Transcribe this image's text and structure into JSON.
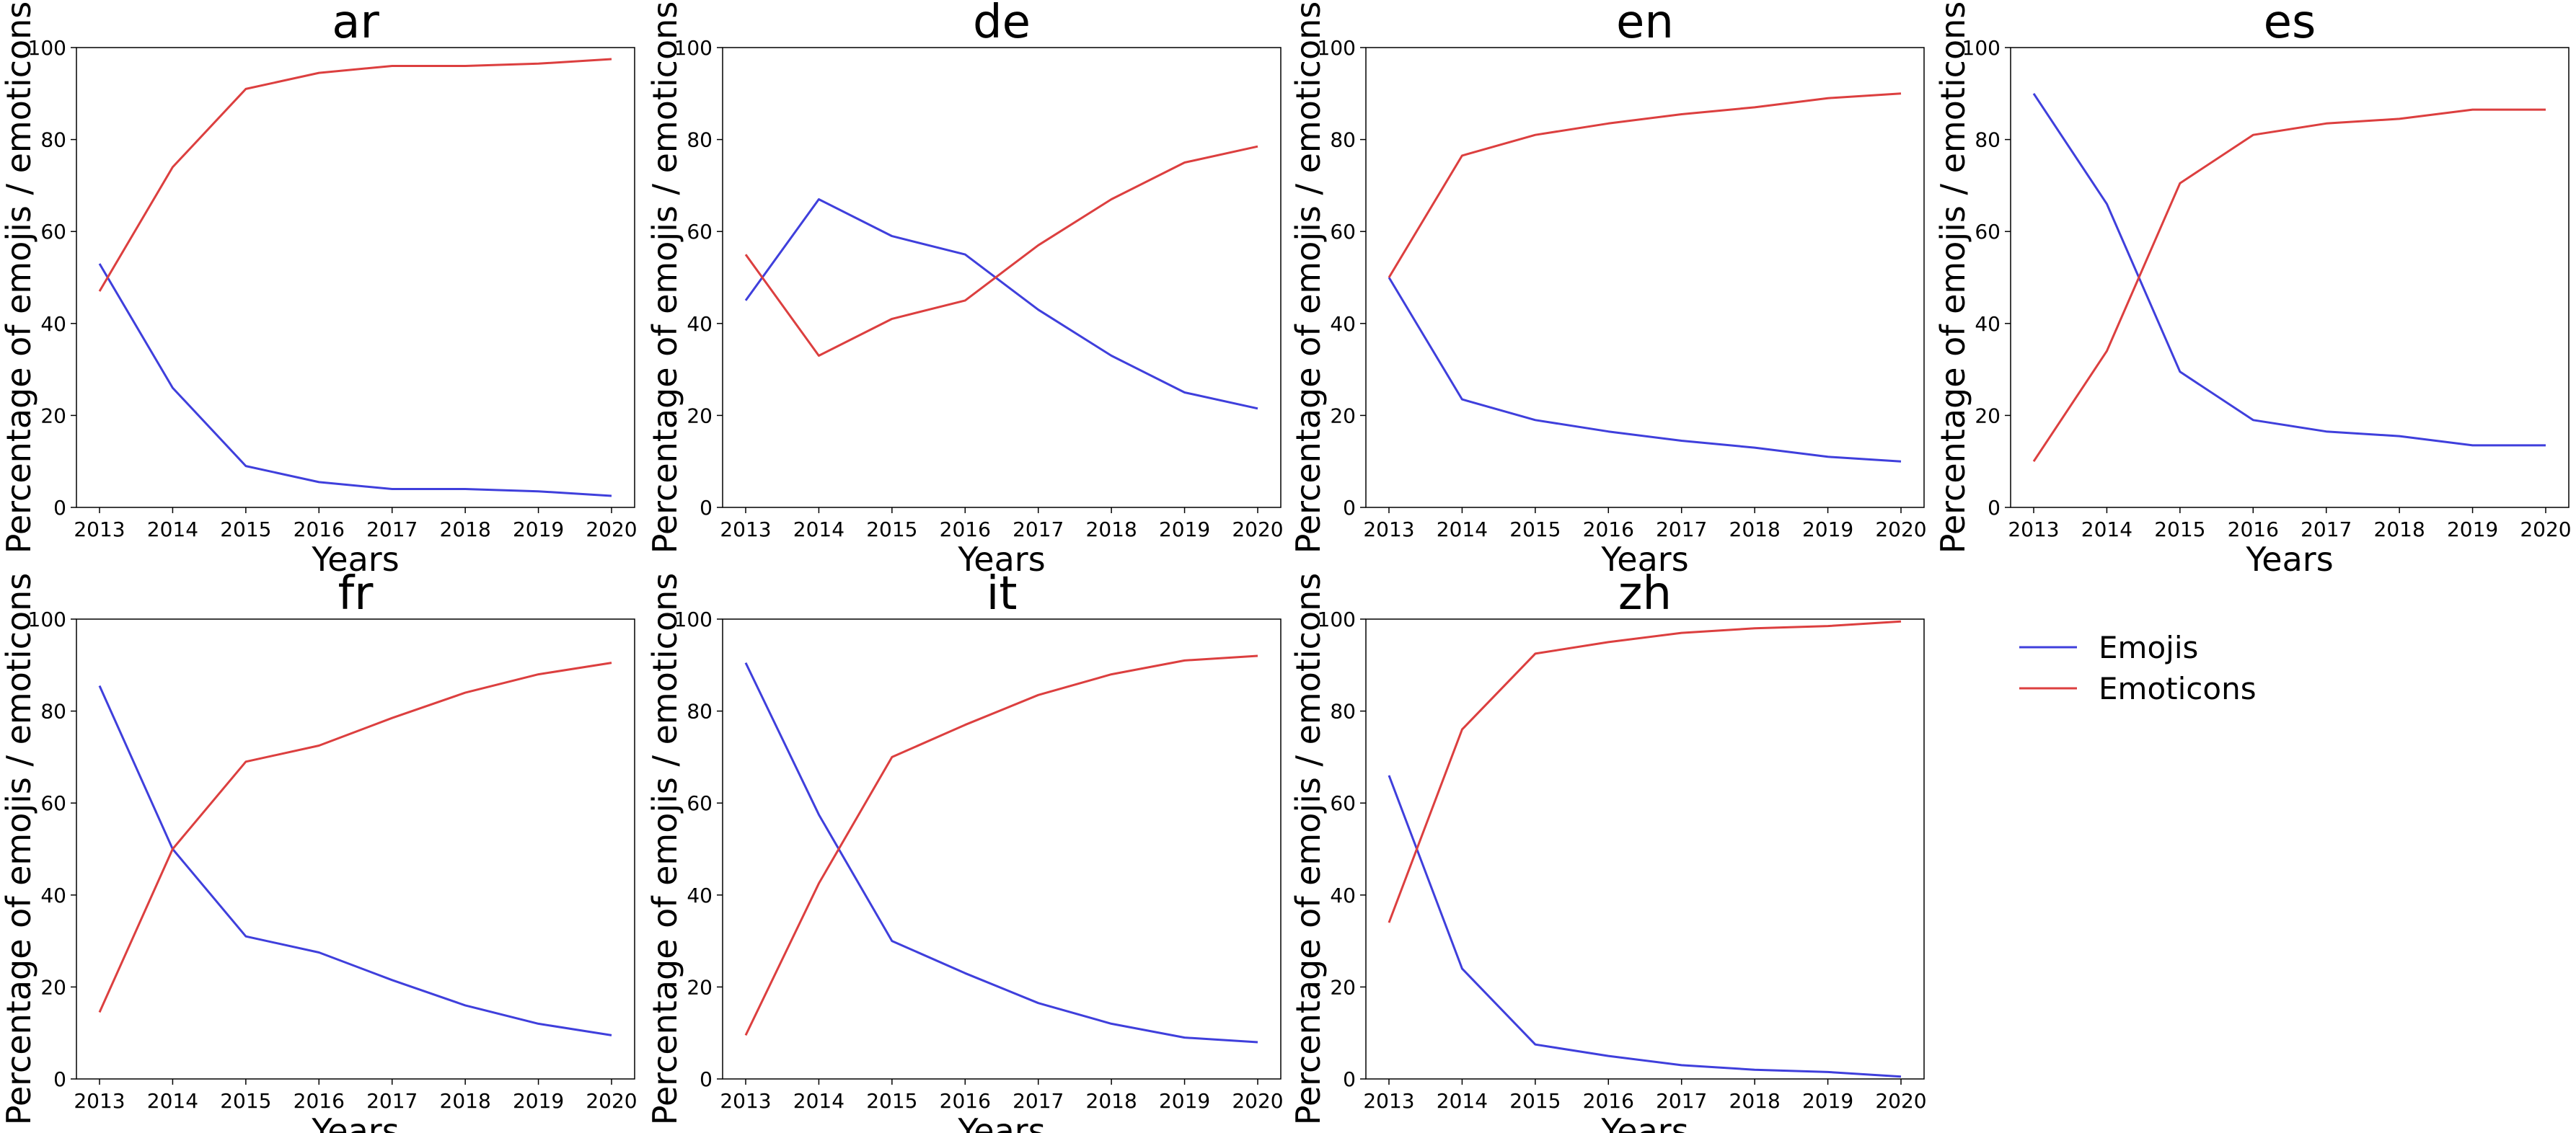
{
  "colors": {
    "emojis": "#3f3fdc",
    "emoticons": "#dc3f3f"
  },
  "chart_data": [
    {
      "type": "line",
      "title": "ar",
      "xlabel": "Years",
      "ylabel": "Percentage of emojis / emoticons",
      "x": [
        2013,
        2014,
        2015,
        2016,
        2017,
        2018,
        2019,
        2020
      ],
      "xlim": [
        2013,
        2020
      ],
      "ylim": [
        0,
        100
      ],
      "yticks": [
        "0",
        "20",
        "40",
        "60",
        "80",
        "100"
      ],
      "xticks": [
        "2013",
        "2014",
        "2015",
        "2016",
        "2017",
        "2018",
        "2019",
        "2020"
      ],
      "series": [
        {
          "name": "Emojis",
          "values": [
            53,
            26,
            9,
            5.5,
            4,
            4,
            3.5,
            2.5
          ]
        },
        {
          "name": "Emoticons",
          "values": [
            47,
            74,
            91,
            94.5,
            96,
            96,
            96.5,
            97.5
          ]
        }
      ]
    },
    {
      "type": "line",
      "title": "de",
      "xlabel": "Years",
      "ylabel": "Percentage of emojis / emoticons",
      "x": [
        2013,
        2014,
        2015,
        2016,
        2017,
        2018,
        2019,
        2020
      ],
      "xlim": [
        2013,
        2020
      ],
      "ylim": [
        0,
        100
      ],
      "yticks": [
        "0",
        "20",
        "40",
        "60",
        "80",
        "100"
      ],
      "xticks": [
        "2013",
        "2014",
        "2015",
        "2016",
        "2017",
        "2018",
        "2019",
        "2020"
      ],
      "series": [
        {
          "name": "Emojis",
          "values": [
            45,
            67,
            59,
            55,
            43,
            33,
            25,
            21.5
          ]
        },
        {
          "name": "Emoticons",
          "values": [
            55,
            33,
            41,
            45,
            57,
            67,
            75,
            78.5
          ]
        }
      ]
    },
    {
      "type": "line",
      "title": "en",
      "xlabel": "Years",
      "ylabel": "Percentage of emojis / emoticons",
      "x": [
        2013,
        2014,
        2015,
        2016,
        2017,
        2018,
        2019,
        2020
      ],
      "xlim": [
        2013,
        2020
      ],
      "ylim": [
        0,
        100
      ],
      "yticks": [
        "0",
        "20",
        "40",
        "60",
        "80",
        "100"
      ],
      "xticks": [
        "2013",
        "2014",
        "2015",
        "2016",
        "2017",
        "2018",
        "2019",
        "2020"
      ],
      "series": [
        {
          "name": "Emojis",
          "values": [
            50,
            23.5,
            19,
            16.5,
            14.5,
            13,
            11,
            10
          ]
        },
        {
          "name": "Emoticons",
          "values": [
            50,
            76.5,
            81,
            83.5,
            85.5,
            87,
            89,
            90
          ]
        }
      ]
    },
    {
      "type": "line",
      "title": "es",
      "xlabel": "Years",
      "ylabel": "Percentage of emojis / emoticons",
      "x": [
        2013,
        2014,
        2015,
        2016,
        2017,
        2018,
        2019,
        2020
      ],
      "xlim": [
        2013,
        2020
      ],
      "ylim": [
        0,
        100
      ],
      "yticks": [
        "0",
        "20",
        "40",
        "60",
        "80",
        "100"
      ],
      "xticks": [
        "2013",
        "2014",
        "2015",
        "2016",
        "2017",
        "2018",
        "2019",
        "2020"
      ],
      "series": [
        {
          "name": "Emojis",
          "values": [
            90,
            66,
            29.5,
            19,
            16.5,
            15.5,
            13.5,
            13.5
          ]
        },
        {
          "name": "Emoticons",
          "values": [
            10,
            34,
            70.5,
            81,
            83.5,
            84.5,
            86.5,
            86.5
          ]
        }
      ]
    },
    {
      "type": "line",
      "title": "fr",
      "xlabel": "Years",
      "ylabel": "Percentage of emojis / emoticons",
      "x": [
        2013,
        2014,
        2015,
        2016,
        2017,
        2018,
        2019,
        2020
      ],
      "xlim": [
        2013,
        2020
      ],
      "ylim": [
        0,
        100
      ],
      "yticks": [
        "0",
        "20",
        "40",
        "60",
        "80",
        "100"
      ],
      "xticks": [
        "2013",
        "2014",
        "2015",
        "2016",
        "2017",
        "2018",
        "2019",
        "2020"
      ],
      "series": [
        {
          "name": "Emojis",
          "values": [
            85.5,
            50,
            31,
            27.5,
            21.5,
            16,
            12,
            9.5
          ]
        },
        {
          "name": "Emoticons",
          "values": [
            14.5,
            50,
            69,
            72.5,
            78.5,
            84,
            88,
            90.5
          ]
        }
      ]
    },
    {
      "type": "line",
      "title": "it",
      "xlabel": "Years",
      "ylabel": "Percentage of emojis / emoticons",
      "x": [
        2013,
        2014,
        2015,
        2016,
        2017,
        2018,
        2019,
        2020
      ],
      "xlim": [
        2013,
        2020
      ],
      "ylim": [
        0,
        100
      ],
      "yticks": [
        "0",
        "20",
        "40",
        "60",
        "80",
        "100"
      ],
      "xticks": [
        "2013",
        "2014",
        "2015",
        "2016",
        "2017",
        "2018",
        "2019",
        "2020"
      ],
      "series": [
        {
          "name": "Emojis",
          "values": [
            90.5,
            57.5,
            30,
            23,
            16.5,
            12,
            9,
            8
          ]
        },
        {
          "name": "Emoticons",
          "values": [
            9.5,
            42.5,
            70,
            77,
            83.5,
            88,
            91,
            92
          ]
        }
      ]
    },
    {
      "type": "line",
      "title": "zh",
      "xlabel": "Years",
      "ylabel": "Percentage of emojis / emoticons",
      "x": [
        2013,
        2014,
        2015,
        2016,
        2017,
        2018,
        2019,
        2020
      ],
      "xlim": [
        2013,
        2020
      ],
      "ylim": [
        0,
        100
      ],
      "yticks": [
        "0",
        "20",
        "40",
        "60",
        "80",
        "100"
      ],
      "xticks": [
        "2013",
        "2014",
        "2015",
        "2016",
        "2017",
        "2018",
        "2019",
        "2020"
      ],
      "series": [
        {
          "name": "Emojis",
          "values": [
            66,
            24,
            7.5,
            5,
            3,
            2,
            1.5,
            0.5
          ]
        },
        {
          "name": "Emoticons",
          "values": [
            34,
            76,
            92.5,
            95,
            97,
            98,
            98.5,
            99.5
          ]
        }
      ]
    }
  ],
  "legend": {
    "entries": [
      "Emojis",
      "Emoticons"
    ],
    "placement": "right"
  }
}
